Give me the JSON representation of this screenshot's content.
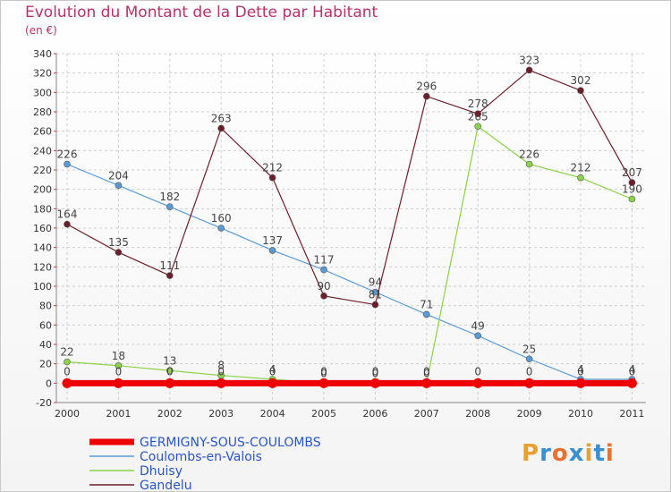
{
  "header": {
    "title": "Evolution du Montant de la Dette par Habitant",
    "subtitle": "(en €)"
  },
  "logo": {
    "text": "Proxiti",
    "colors": [
      "#e8a030",
      "#3a8fd0",
      "#e87030",
      "#3a8fd0",
      "#e8a030",
      "#3a8fd0",
      "#e87030"
    ]
  },
  "chart_data": {
    "type": "line",
    "title": "Evolution du Montant de la Dette par Habitant",
    "ylabel": "(en €)",
    "xlabel": "",
    "x": [
      "2000",
      "2001",
      "2002",
      "2003",
      "2004",
      "2005",
      "2006",
      "2007",
      "2008",
      "2009",
      "2010",
      "2011"
    ],
    "ylim": [
      -20,
      340
    ],
    "yticks": [
      -20,
      0,
      20,
      40,
      60,
      80,
      100,
      120,
      140,
      160,
      180,
      200,
      220,
      240,
      260,
      280,
      300,
      320,
      340
    ],
    "grid": true,
    "legend_position": "bottom-left",
    "series": [
      {
        "name": "Coulombs-en-Valois",
        "color": "#5b9bd5",
        "values": [
          226,
          204,
          182,
          160,
          137,
          117,
          94,
          71,
          49,
          25,
          4,
          4
        ],
        "labels": [
          "226",
          "204",
          "182",
          "160",
          "137",
          "117",
          "94",
          "71",
          "49",
          "25",
          "4",
          "4"
        ]
      },
      {
        "name": "Dhuisy",
        "color": "#8cd24a",
        "values": [
          22,
          18,
          13,
          8,
          4,
          0,
          0,
          0,
          265,
          226,
          212,
          190
        ],
        "labels": [
          "22",
          "18",
          "13",
          "8",
          "4",
          "0",
          "0",
          "0",
          "265",
          "226",
          "212",
          "190"
        ]
      },
      {
        "name": "Gandelu",
        "color": "#6b1f2a",
        "values": [
          164,
          135,
          111,
          263,
          212,
          90,
          81,
          296,
          278,
          323,
          302,
          207
        ],
        "labels": [
          "164",
          "135",
          "111",
          "263",
          "212",
          "90",
          "81",
          "296",
          "278",
          "323",
          "302",
          "207"
        ]
      },
      {
        "name": "GERMIGNY-SOUS-COULOMBS",
        "color": "#ee0000",
        "values": [
          0,
          0,
          0,
          0,
          0,
          0,
          0,
          0,
          0,
          0,
          0,
          0
        ],
        "labels": [
          "0",
          "0",
          "0",
          "0",
          "0",
          "0",
          "0",
          "0",
          "0",
          "0",
          "0",
          "0"
        ]
      }
    ],
    "legend": [
      "GERMIGNY-SOUS-COULOMBS",
      "Coulombs-en-Valois",
      "Dhuisy",
      "Gandelu"
    ]
  }
}
